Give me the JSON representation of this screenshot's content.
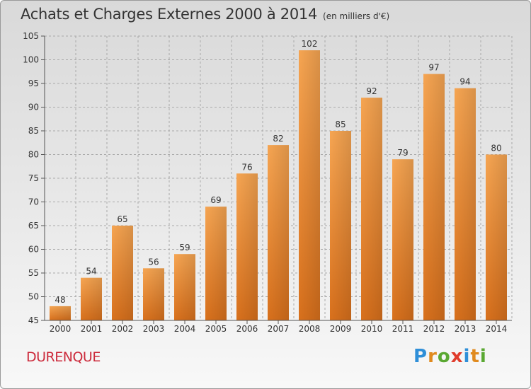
{
  "title": "Achats et Charges Externes 2000 à 2014",
  "unit": "(en milliers d'€)",
  "commune": "DURENQUE",
  "logo": {
    "text": "Proxiti",
    "colors": [
      "#2f8fd8",
      "#e08a1e",
      "#5aa832",
      "#e03c2c",
      "#2f8fd8",
      "#e08a1e",
      "#5aa832"
    ]
  },
  "chart_data": {
    "type": "bar",
    "title": "Achats et Charges Externes 2000 à 2014",
    "subtitle": "(en milliers d'€)",
    "categories": [
      "2000",
      "2001",
      "2002",
      "2003",
      "2004",
      "2005",
      "2006",
      "2007",
      "2008",
      "2009",
      "2010",
      "2011",
      "2012",
      "2013",
      "2014"
    ],
    "values": [
      48,
      54,
      65,
      56,
      59,
      69,
      76,
      82,
      102,
      85,
      92,
      79,
      97,
      94,
      80
    ],
    "ylim": [
      45,
      105
    ],
    "yticks": [
      45,
      50,
      55,
      60,
      65,
      70,
      75,
      80,
      85,
      90,
      95,
      100,
      105
    ],
    "grid": true,
    "bar_color": "#f0913b"
  }
}
